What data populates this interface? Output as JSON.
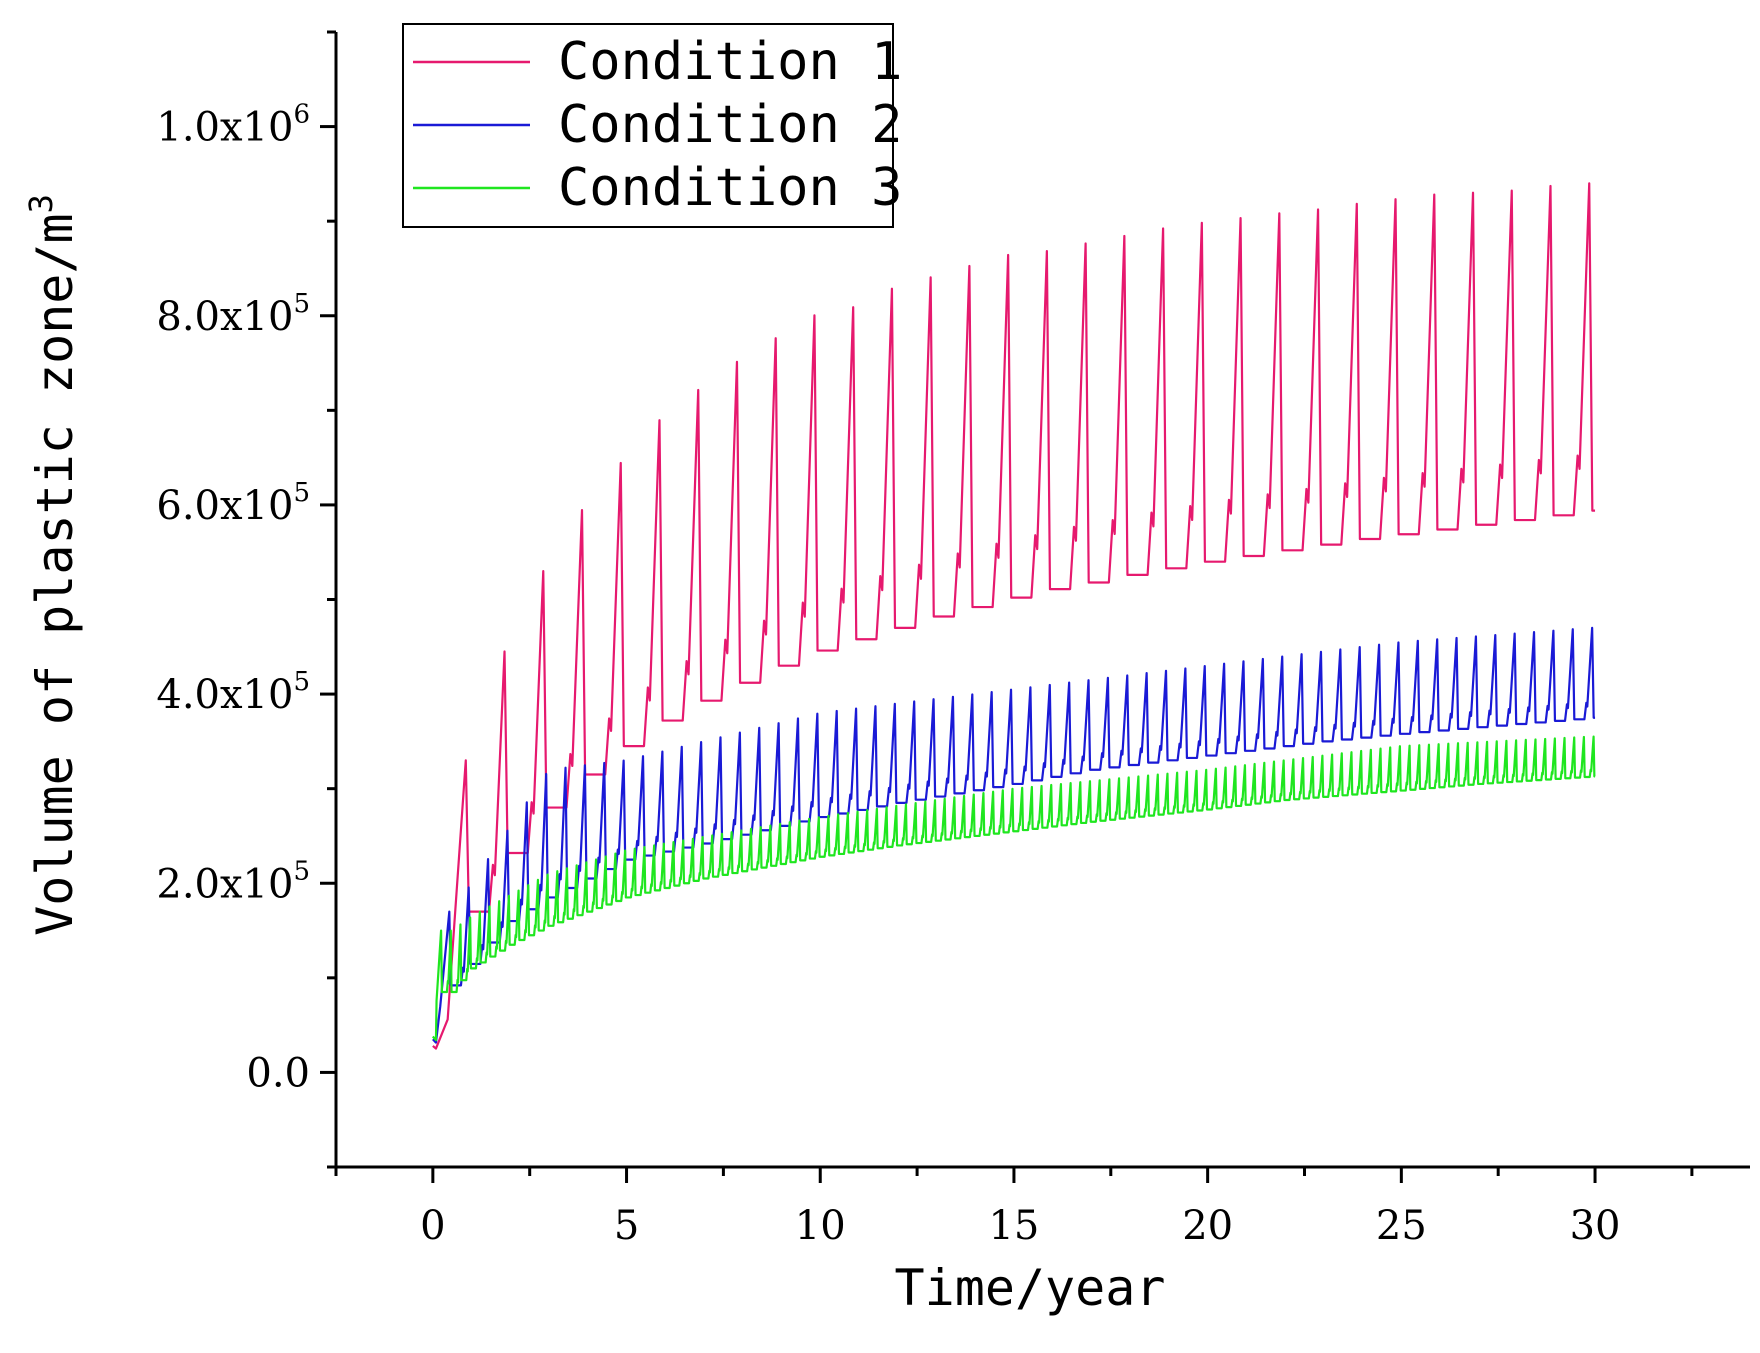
{
  "chart_data": {
    "type": "line",
    "title": "",
    "xlabel": "Time/year",
    "ylabel": "Volume of plastic zone/m3",
    "ylabel_main": "Volume of plastic zone/m",
    "ylabel_sup": "3",
    "xlim": [
      -2.5,
      34
    ],
    "ylim": [
      -100000,
      1100000
    ],
    "xticks": [
      0,
      5,
      10,
      15,
      20,
      25,
      30
    ],
    "xtick_labels": [
      "0",
      "5",
      "10",
      "15",
      "20",
      "25",
      "30"
    ],
    "yticks": [
      {
        "value": 0,
        "mant": "0.0",
        "exp": ""
      },
      {
        "value": 200000,
        "mant": "2.0x10",
        "exp": "5"
      },
      {
        "value": 400000,
        "mant": "4.0x10",
        "exp": "5"
      },
      {
        "value": 600000,
        "mant": "6.0x10",
        "exp": "5"
      },
      {
        "value": 800000,
        "mant": "8.0x10",
        "exp": "5"
      },
      {
        "value": 1000000,
        "mant": "1.0x10",
        "exp": "6"
      }
    ],
    "grid": false,
    "legend_position": "top-left",
    "series": [
      {
        "name": "Condition 1",
        "color": "#e6196e",
        "period": 1.0,
        "start_value": 28000,
        "x_end": 30,
        "troughs": [
          [
            1,
            170000
          ],
          [
            2,
            232000
          ],
          [
            3,
            280000
          ],
          [
            4,
            315000
          ],
          [
            5,
            345000
          ],
          [
            6,
            372000
          ],
          [
            7,
            393000
          ],
          [
            8,
            412000
          ],
          [
            9,
            430000
          ],
          [
            10,
            446000
          ],
          [
            11,
            458000
          ],
          [
            12,
            470000
          ],
          [
            13,
            482000
          ],
          [
            14,
            492000
          ],
          [
            15,
            502000
          ],
          [
            16,
            511000
          ],
          [
            17,
            518000
          ],
          [
            18,
            526000
          ],
          [
            19,
            533000
          ],
          [
            20,
            540000
          ],
          [
            21,
            546000
          ],
          [
            22,
            552000
          ],
          [
            23,
            558000
          ],
          [
            24,
            564000
          ],
          [
            25,
            569000
          ],
          [
            26,
            574000
          ],
          [
            27,
            579000
          ],
          [
            28,
            584000
          ],
          [
            29,
            589000
          ],
          [
            30,
            594000
          ]
        ],
        "peaks": [
          [
            0.85,
            330000
          ],
          [
            1.85,
            445000
          ],
          [
            2.85,
            530000
          ],
          [
            3.8,
            592000
          ],
          [
            4.8,
            642000
          ],
          [
            5.8,
            688000
          ],
          [
            6.8,
            720000
          ],
          [
            7.8,
            750000
          ],
          [
            8.8,
            775000
          ],
          [
            9.8,
            800000
          ],
          [
            10.8,
            808000
          ],
          [
            11.8,
            828000
          ],
          [
            12.8,
            840000
          ],
          [
            13.8,
            852000
          ],
          [
            14.8,
            864000
          ],
          [
            15.8,
            868000
          ],
          [
            16.8,
            876000
          ],
          [
            17.8,
            884000
          ],
          [
            18.8,
            892000
          ],
          [
            19.8,
            898000
          ],
          [
            20.8,
            903000
          ],
          [
            21.8,
            908000
          ],
          [
            22.8,
            912000
          ],
          [
            23.8,
            918000
          ],
          [
            24.8,
            923000
          ],
          [
            25.8,
            928000
          ],
          [
            26.8,
            930000
          ],
          [
            27.8,
            932000
          ],
          [
            28.8,
            937000
          ],
          [
            29.8,
            940000
          ]
        ]
      },
      {
        "name": "Condition 2",
        "color": "#1a1ad6",
        "period": 0.5,
        "start_value": 35000,
        "x_end": 30,
        "troughs": [
          [
            0.5,
            92000
          ],
          [
            2,
            160000
          ],
          [
            3,
            185000
          ],
          [
            5,
            225000
          ],
          [
            7,
            242000
          ],
          [
            10,
            270000
          ],
          [
            12,
            285000
          ],
          [
            15,
            305000
          ],
          [
            17,
            320000
          ],
          [
            20,
            335000
          ],
          [
            23,
            350000
          ],
          [
            25,
            358000
          ],
          [
            27,
            365000
          ],
          [
            30,
            375000
          ]
        ],
        "peaks": [
          [
            0.5,
            170000
          ],
          [
            3,
            320000
          ],
          [
            5,
            330000
          ],
          [
            7,
            350000
          ],
          [
            10,
            380000
          ],
          [
            15,
            405000
          ],
          [
            20,
            430000
          ],
          [
            25,
            455000
          ],
          [
            29.9,
            470000
          ]
        ]
      },
      {
        "name": "Condition 3",
        "color": "#1fe61f",
        "period": 0.25,
        "start_value": 38000,
        "x_end": 30,
        "troughs": [
          [
            0.5,
            85000
          ],
          [
            1,
            110000
          ],
          [
            2,
            135000
          ],
          [
            3,
            155000
          ],
          [
            5,
            185000
          ],
          [
            7,
            205000
          ],
          [
            10,
            228000
          ],
          [
            12,
            240000
          ],
          [
            15,
            255000
          ],
          [
            17,
            265000
          ],
          [
            20,
            278000
          ],
          [
            22,
            288000
          ],
          [
            25,
            298000
          ],
          [
            27,
            305000
          ],
          [
            30,
            313000
          ]
        ],
        "peaks": [
          [
            0.5,
            150000
          ],
          [
            1,
            165000
          ],
          [
            3,
            210000
          ],
          [
            5,
            235000
          ],
          [
            10,
            270000
          ],
          [
            15,
            300000
          ],
          [
            20,
            320000
          ],
          [
            25,
            345000
          ],
          [
            29.9,
            355000
          ]
        ]
      }
    ]
  }
}
